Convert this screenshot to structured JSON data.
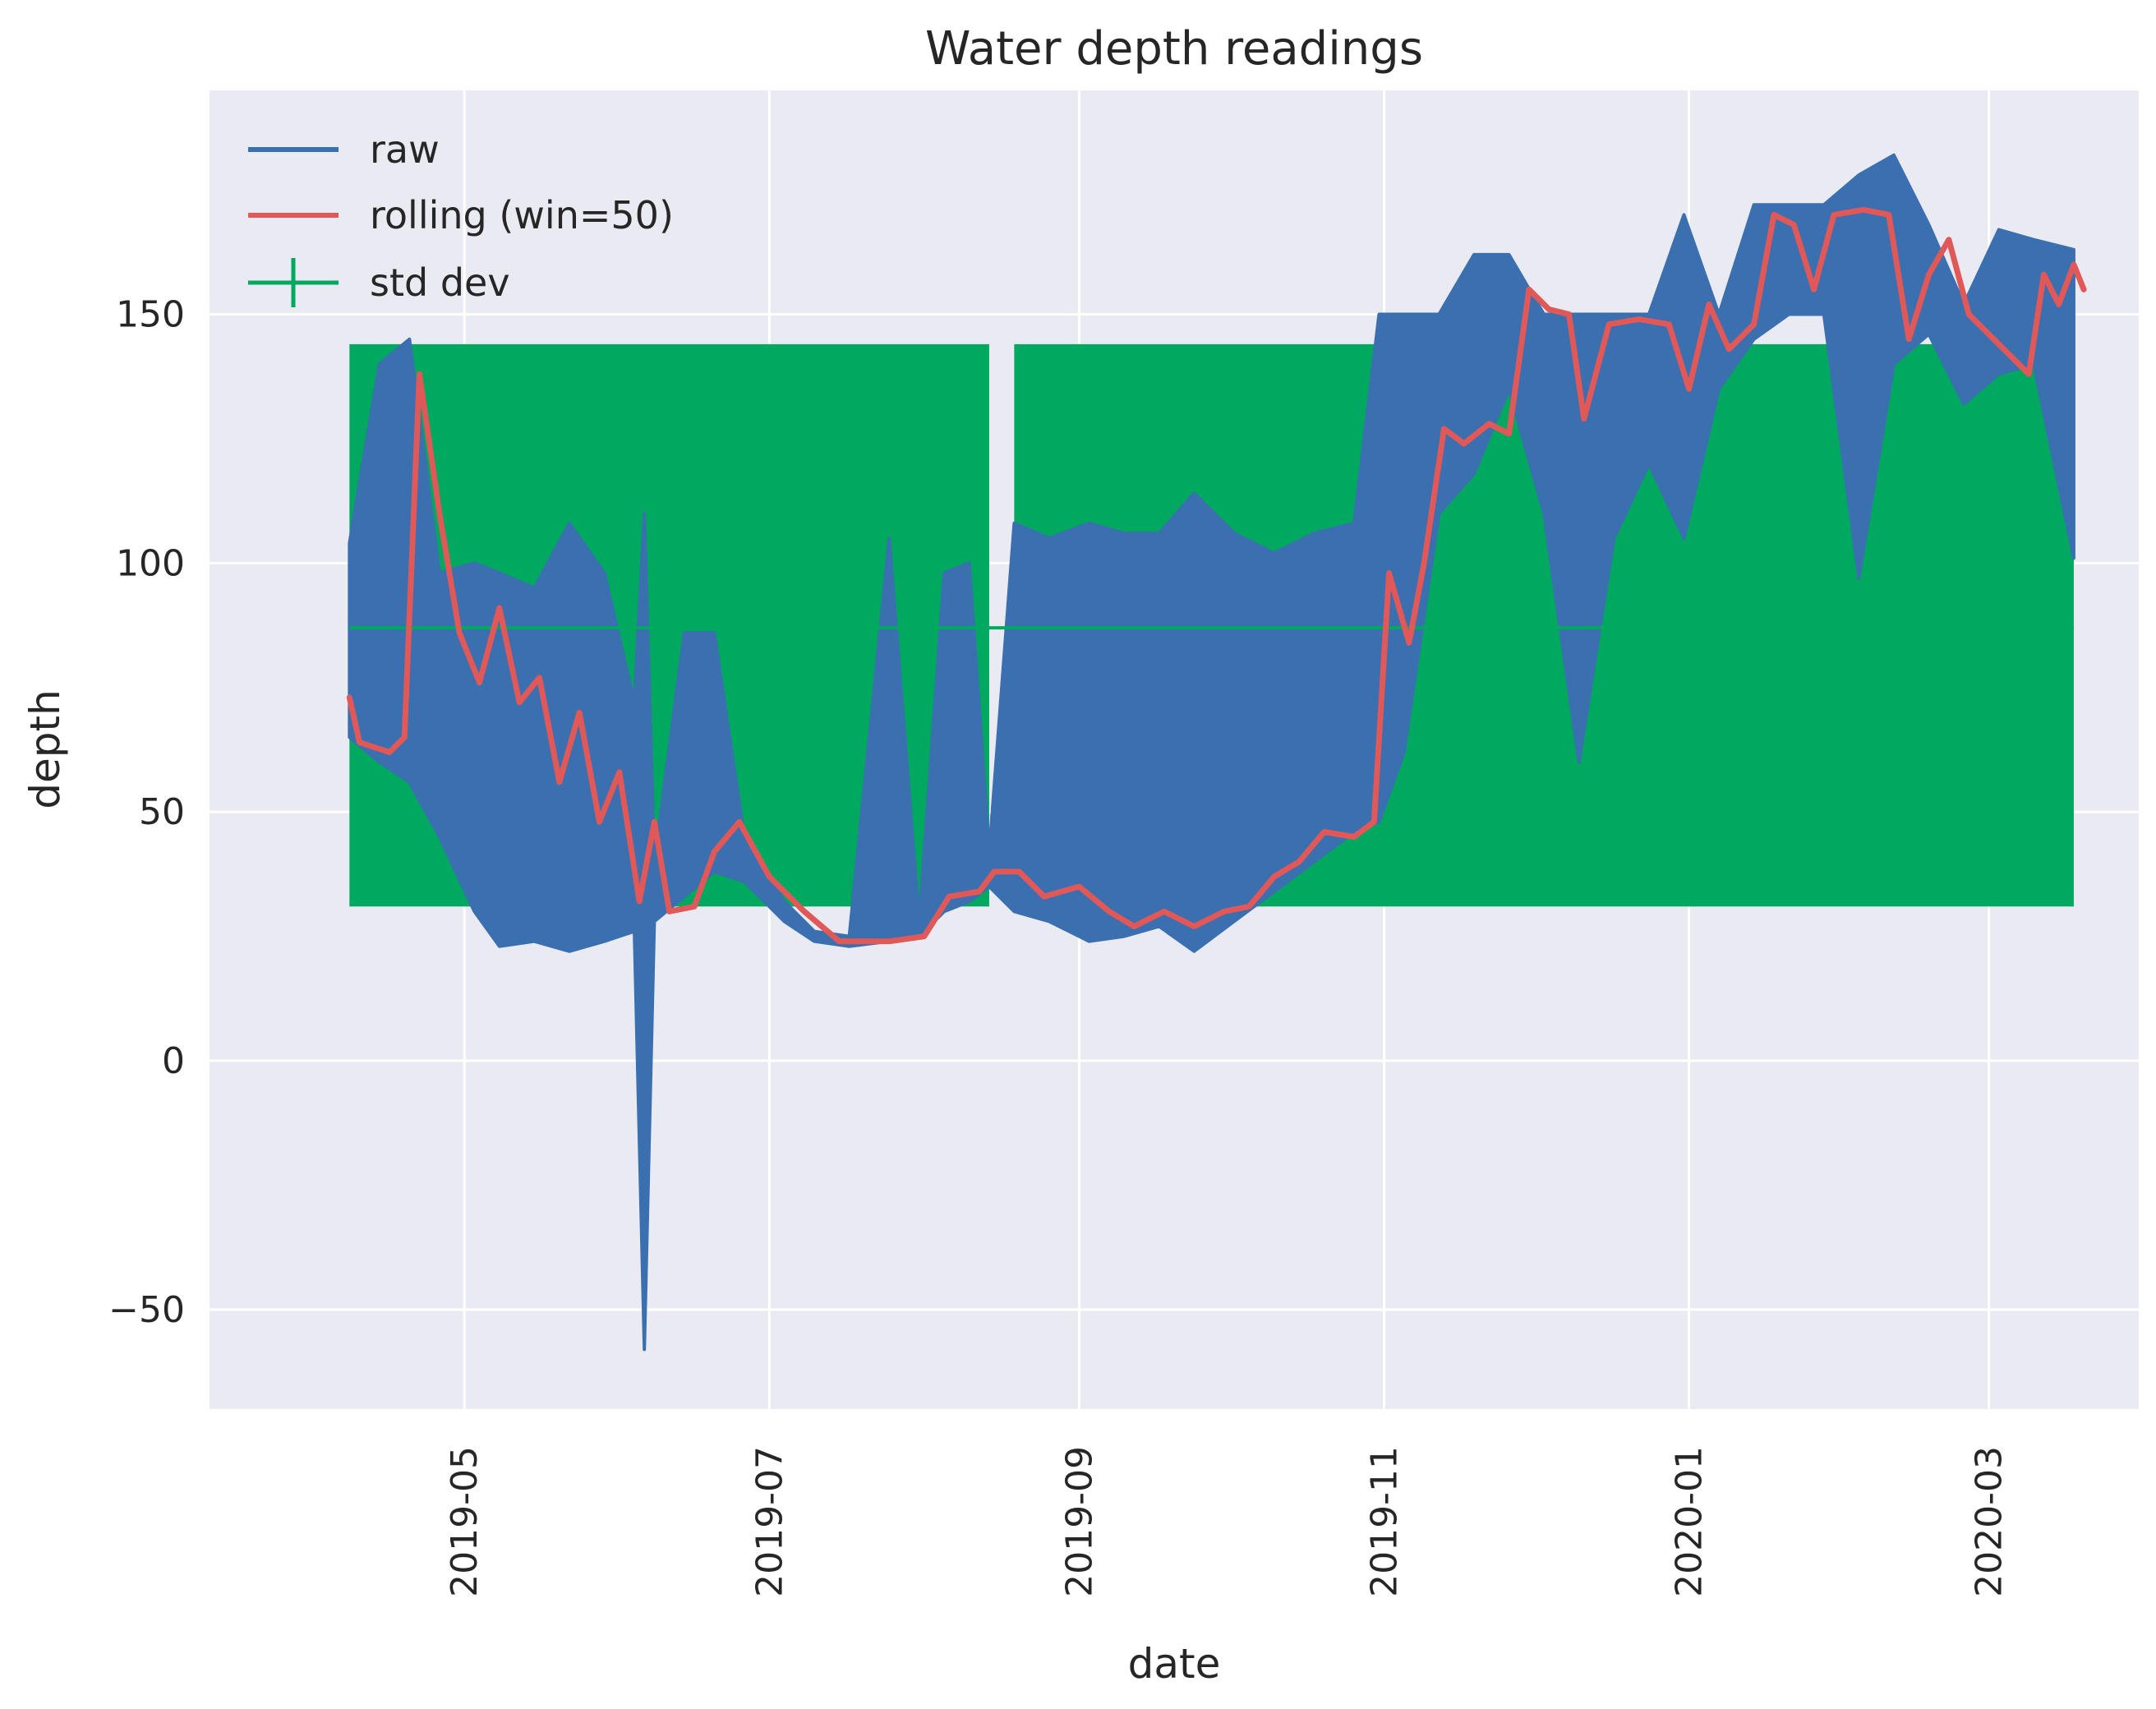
{
  "chart_data": {
    "type": "line",
    "title": "Water depth readings",
    "xlabel": "date",
    "ylabel": "depth",
    "xlim": [
      "2019-03-11",
      "2020-03-31"
    ],
    "ylim": [
      -70,
      195
    ],
    "grid": true,
    "legend_position": "upper-left",
    "x_ticks": [
      "2019-05",
      "2019-07",
      "2019-09",
      "2019-11",
      "2020-01",
      "2020-03"
    ],
    "x_tick_dates": [
      "2019-05-01",
      "2019-07-01",
      "2019-09-01",
      "2019-11-01",
      "2020-01-01",
      "2020-03-01"
    ],
    "y_ticks": [
      -50,
      0,
      50,
      100,
      150
    ],
    "y_tick_labels": [
      "−50",
      "0",
      "50",
      "100",
      "150"
    ],
    "colors": {
      "raw": "#3a6fb0",
      "rolling": "#e05858",
      "std": "#00a860"
    },
    "std_band": {
      "name": "std dev",
      "center": 87,
      "lower": 31,
      "upper": 144,
      "segments": [
        [
          "2019-04-08",
          "2019-08-14"
        ],
        [
          "2019-08-19",
          "2020-03-18"
        ]
      ]
    },
    "series": [
      {
        "name": "raw",
        "points": [
          [
            "2019-04-08",
            104,
            65
          ],
          [
            "2019-04-14",
            140,
            60
          ],
          [
            "2019-04-20",
            145,
            56
          ],
          [
            "2019-04-26",
            98,
            45
          ],
          [
            "2019-05-03",
            100,
            30
          ],
          [
            "2019-05-08",
            98,
            23
          ],
          [
            "2019-05-15",
            95,
            24
          ],
          [
            "2019-05-22",
            108,
            22
          ],
          [
            "2019-05-29",
            98,
            24
          ],
          [
            "2019-06-04",
            72,
            26
          ],
          [
            "2019-06-06",
            110,
            -58
          ],
          [
            "2019-06-08",
            40,
            28
          ],
          [
            "2019-06-14",
            86,
            33
          ],
          [
            "2019-06-20",
            86,
            38
          ],
          [
            "2019-06-26",
            45,
            36
          ],
          [
            "2019-07-04",
            32,
            28
          ],
          [
            "2019-07-10",
            26,
            24
          ],
          [
            "2019-07-17",
            25,
            23
          ],
          [
            "2019-07-25",
            105,
            24
          ],
          [
            "2019-07-31",
            28,
            25
          ],
          [
            "2019-08-05",
            98,
            30
          ],
          [
            "2019-08-10",
            100,
            32
          ],
          [
            "2019-08-14",
            42,
            35
          ],
          [
            "2019-08-19",
            108,
            30
          ],
          [
            "2019-08-26",
            105,
            28
          ],
          [
            "2019-09-03",
            108,
            24
          ],
          [
            "2019-09-10",
            106,
            25
          ],
          [
            "2019-09-17",
            106,
            27
          ],
          [
            "2019-09-24",
            114,
            22
          ],
          [
            "2019-10-02",
            106,
            28
          ],
          [
            "2019-10-10",
            102,
            34
          ],
          [
            "2019-10-18",
            106,
            40
          ],
          [
            "2019-10-26",
            108,
            46
          ],
          [
            "2019-10-31",
            150,
            48
          ],
          [
            "2019-11-05",
            150,
            62
          ],
          [
            "2019-11-12",
            150,
            110
          ],
          [
            "2019-11-19",
            162,
            118
          ],
          [
            "2019-11-26",
            162,
            135
          ],
          [
            "2019-12-03",
            150,
            110
          ],
          [
            "2019-12-10",
            150,
            60
          ],
          [
            "2019-12-17",
            150,
            105
          ],
          [
            "2019-12-24",
            150,
            120
          ],
          [
            "2019-12-31",
            170,
            105
          ],
          [
            "2020-01-07",
            150,
            135
          ],
          [
            "2020-01-14",
            172,
            145
          ],
          [
            "2020-01-21",
            172,
            150
          ],
          [
            "2020-01-28",
            172,
            150
          ],
          [
            "2020-02-04",
            178,
            97
          ],
          [
            "2020-02-11",
            182,
            140
          ],
          [
            "2020-02-18",
            168,
            146
          ],
          [
            "2020-02-25",
            152,
            132
          ],
          [
            "2020-03-03",
            167,
            138
          ],
          [
            "2020-03-10",
            165,
            140
          ],
          [
            "2020-03-18",
            163,
            101
          ]
        ]
      },
      {
        "name": "rolling (win=50)",
        "points": [
          [
            "2019-04-08",
            73
          ],
          [
            "2019-04-10",
            64
          ],
          [
            "2019-04-16",
            62
          ],
          [
            "2019-04-19",
            65
          ],
          [
            "2019-04-22",
            138
          ],
          [
            "2019-04-26",
            110
          ],
          [
            "2019-04-30",
            86
          ],
          [
            "2019-05-04",
            76
          ],
          [
            "2019-05-08",
            91
          ],
          [
            "2019-05-12",
            72
          ],
          [
            "2019-05-16",
            77
          ],
          [
            "2019-05-20",
            56
          ],
          [
            "2019-05-24",
            70
          ],
          [
            "2019-05-28",
            48
          ],
          [
            "2019-06-01",
            58
          ],
          [
            "2019-06-05",
            32
          ],
          [
            "2019-06-08",
            48
          ],
          [
            "2019-06-11",
            30
          ],
          [
            "2019-06-16",
            31
          ],
          [
            "2019-06-20",
            42
          ],
          [
            "2019-06-25",
            48
          ],
          [
            "2019-07-01",
            37
          ],
          [
            "2019-07-08",
            30
          ],
          [
            "2019-07-15",
            24
          ],
          [
            "2019-07-25",
            24
          ],
          [
            "2019-08-01",
            25
          ],
          [
            "2019-08-06",
            33
          ],
          [
            "2019-08-12",
            34
          ],
          [
            "2019-08-15",
            38
          ],
          [
            "2019-08-20",
            38
          ],
          [
            "2019-08-25",
            33
          ],
          [
            "2019-09-01",
            35
          ],
          [
            "2019-09-07",
            30
          ],
          [
            "2019-09-12",
            27
          ],
          [
            "2019-09-18",
            30
          ],
          [
            "2019-09-24",
            27
          ],
          [
            "2019-09-30",
            30
          ],
          [
            "2019-10-05",
            31
          ],
          [
            "2019-10-10",
            37
          ],
          [
            "2019-10-15",
            40
          ],
          [
            "2019-10-20",
            46
          ],
          [
            "2019-10-26",
            45
          ],
          [
            "2019-10-30",
            48
          ],
          [
            "2019-11-02",
            98
          ],
          [
            "2019-11-06",
            84
          ],
          [
            "2019-11-09",
            100
          ],
          [
            "2019-11-13",
            127
          ],
          [
            "2019-11-17",
            124
          ],
          [
            "2019-11-22",
            128
          ],
          [
            "2019-11-26",
            126
          ],
          [
            "2019-11-30",
            155
          ],
          [
            "2019-12-04",
            151
          ],
          [
            "2019-12-08",
            150
          ],
          [
            "2019-12-11",
            129
          ],
          [
            "2019-12-16",
            148
          ],
          [
            "2019-12-22",
            149
          ],
          [
            "2019-12-28",
            148
          ],
          [
            "2020-01-01",
            135
          ],
          [
            "2020-01-05",
            152
          ],
          [
            "2020-01-09",
            143
          ],
          [
            "2020-01-14",
            148
          ],
          [
            "2020-01-18",
            170
          ],
          [
            "2020-01-22",
            168
          ],
          [
            "2020-01-26",
            155
          ],
          [
            "2020-01-30",
            170
          ],
          [
            "2020-02-05",
            171
          ],
          [
            "2020-02-10",
            170
          ],
          [
            "2020-02-14",
            145
          ],
          [
            "2020-02-18",
            158
          ],
          [
            "2020-02-22",
            165
          ],
          [
            "2020-02-26",
            150
          ],
          [
            "2020-03-02",
            145
          ],
          [
            "2020-03-06",
            141
          ],
          [
            "2020-03-09",
            138
          ],
          [
            "2020-03-12",
            158
          ],
          [
            "2020-03-15",
            152
          ],
          [
            "2020-03-18",
            160
          ],
          [
            "2020-03-20",
            155
          ]
        ]
      }
    ]
  }
}
